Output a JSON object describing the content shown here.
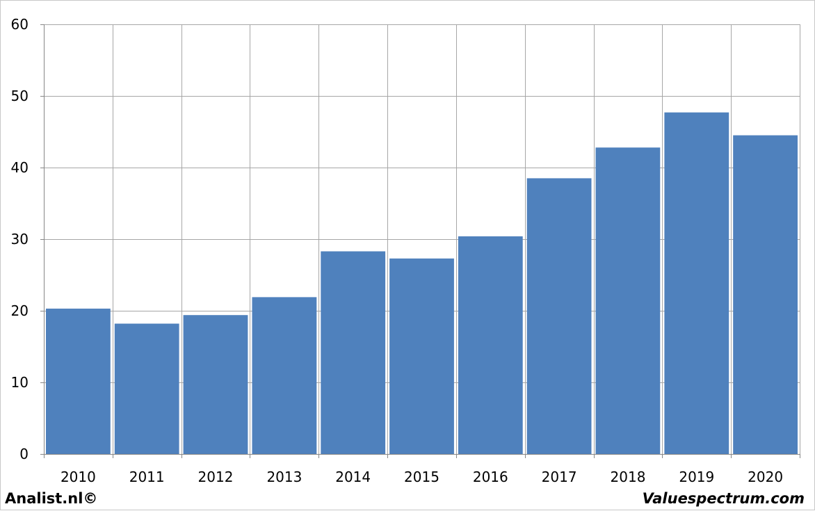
{
  "chart_data": {
    "type": "bar",
    "categories": [
      "2010",
      "2011",
      "2012",
      "2013",
      "2014",
      "2015",
      "2016",
      "2017",
      "2018",
      "2019",
      "2020"
    ],
    "values": [
      20.3,
      18.2,
      19.4,
      21.9,
      28.3,
      27.3,
      30.4,
      38.5,
      42.8,
      47.7,
      44.5
    ],
    "ylim": [
      0,
      60
    ],
    "yticks": [
      0,
      10,
      20,
      30,
      40,
      50,
      60
    ],
    "grid": true,
    "bar_color": "#4f81bd",
    "grid_color": "#a6a6a6"
  },
  "footer": {
    "left": "Analist.nl©",
    "right": "Valuespectrum.com"
  }
}
